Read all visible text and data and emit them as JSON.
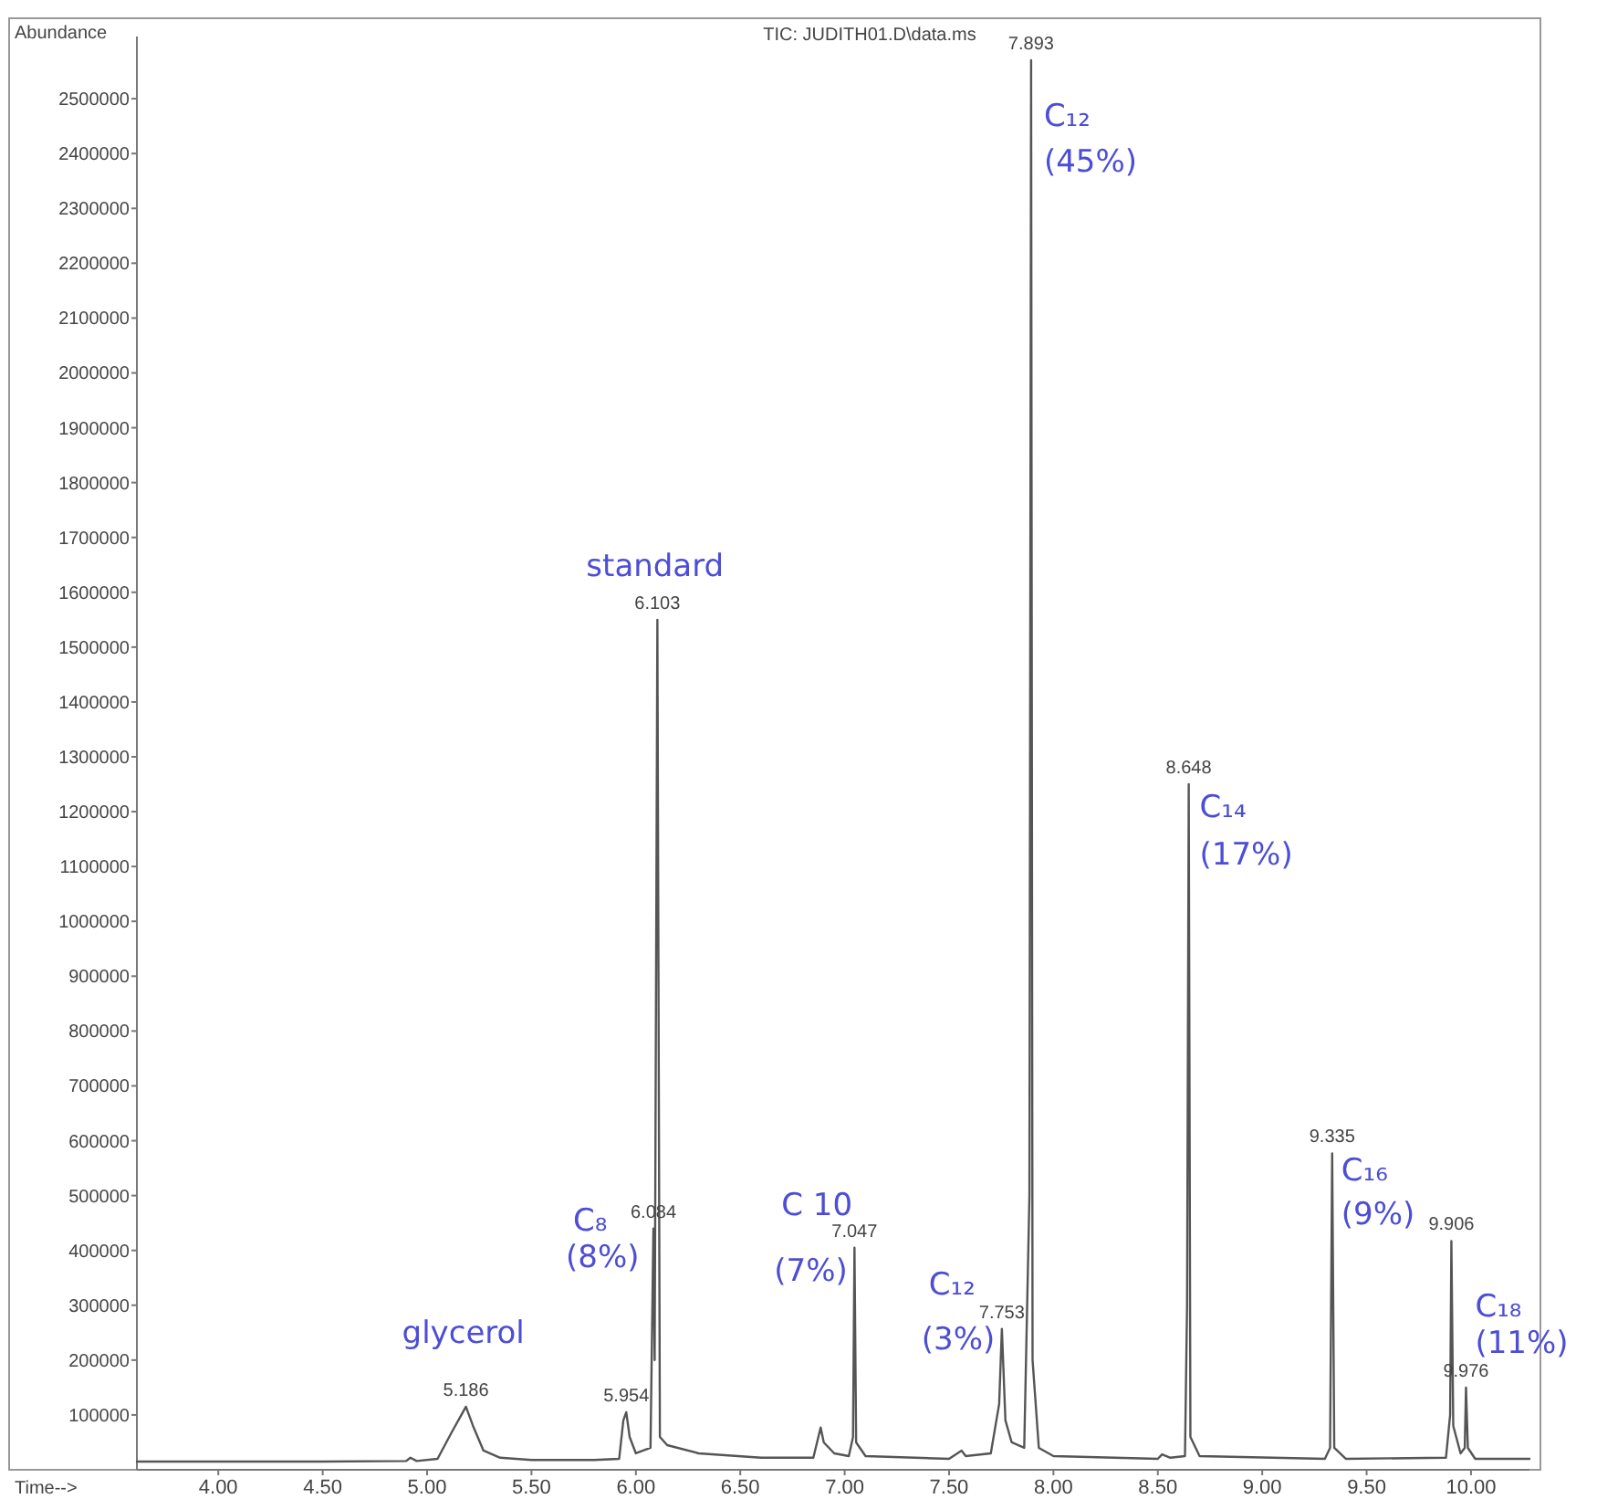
{
  "chart_data": {
    "type": "line",
    "title": "TIC: JUDITH01.D\\data.ms",
    "xlabel": "Time-->",
    "ylabel": "Abundance",
    "x": [
      3.61,
      4.5,
      4.9,
      4.92,
      4.95,
      5.05,
      5.12,
      5.186,
      5.22,
      5.27,
      5.35,
      5.5,
      5.8,
      5.92,
      5.94,
      5.954,
      5.97,
      6.0,
      6.07,
      6.084,
      6.09,
      6.103,
      6.115,
      6.15,
      6.3,
      6.6,
      6.85,
      6.885,
      6.9,
      6.95,
      7.02,
      7.04,
      7.047,
      7.055,
      7.1,
      7.5,
      7.56,
      7.58,
      7.7,
      7.74,
      7.753,
      7.77,
      7.8,
      7.86,
      7.885,
      7.893,
      7.9,
      7.93,
      8.0,
      8.5,
      8.52,
      8.56,
      8.63,
      8.64,
      8.648,
      8.656,
      8.7,
      9.3,
      9.325,
      9.335,
      9.345,
      9.4,
      9.88,
      9.9,
      9.906,
      9.915,
      9.95,
      9.97,
      9.976,
      9.985,
      10.02,
      10.28
    ],
    "series": [
      {
        "color": "#555555",
        "values": [
          15000,
          15000,
          16000,
          22000,
          16000,
          20000,
          70000,
          115000,
          80000,
          35000,
          22000,
          18000,
          18000,
          20000,
          90000,
          105000,
          60000,
          30000,
          40000,
          440000,
          200000,
          1550000,
          60000,
          45000,
          30000,
          22000,
          22000,
          77000,
          50000,
          30000,
          25000,
          60000,
          405000,
          50000,
          25000,
          20000,
          35000,
          25000,
          30000,
          120000,
          257000,
          90000,
          50000,
          40000,
          500000,
          2570000,
          200000,
          40000,
          25000,
          20000,
          28000,
          22000,
          25000,
          300000,
          1250000,
          60000,
          25000,
          20000,
          40000,
          577000,
          40000,
          20000,
          22000,
          100000,
          417000,
          80000,
          30000,
          40000,
          150000,
          40000,
          20000,
          20000
        ]
      }
    ],
    "xlim": [
      3.61,
      10.28
    ],
    "ylim": [
      0,
      2640000
    ],
    "xticks": [
      {
        "value": 4,
        "label": "4.00"
      },
      {
        "value": 4.5,
        "label": "4.50"
      },
      {
        "value": 5,
        "label": "5.00"
      },
      {
        "value": 5.5,
        "label": "5.50"
      },
      {
        "value": 6,
        "label": "6.00"
      },
      {
        "value": 6.5,
        "label": "6.50"
      },
      {
        "value": 7,
        "label": "7.00"
      },
      {
        "value": 7.5,
        "label": "7.50"
      },
      {
        "value": 8,
        "label": "8.00"
      },
      {
        "value": 8.5,
        "label": "8.50"
      },
      {
        "value": 9,
        "label": "9.00"
      },
      {
        "value": 9.5,
        "label": "9.50"
      },
      {
        "value": 10,
        "label": "10.00"
      }
    ],
    "yticks": [
      100000,
      200000,
      300000,
      400000,
      500000,
      600000,
      700000,
      800000,
      900000,
      1000000,
      1100000,
      1200000,
      1300000,
      1400000,
      1500000,
      1600000,
      1700000,
      1800000,
      1900000,
      2000000,
      2100000,
      2200000,
      2300000,
      2400000,
      2500000
    ],
    "grid": false,
    "marker": "none",
    "line_style": "solid",
    "annotations": [
      {
        "text": "5.186",
        "x": 5.186,
        "y": 115000
      },
      {
        "text": "5.954",
        "x": 5.954,
        "y": 105000
      },
      {
        "text": "6.084",
        "x": 6.084,
        "y": 440000
      },
      {
        "text": "6.103",
        "x": 6.103,
        "y": 1550000
      },
      {
        "text": "7.047",
        "x": 7.047,
        "y": 405000
      },
      {
        "text": "7.753",
        "x": 7.753,
        "y": 257000
      },
      {
        "text": "7.893",
        "x": 7.893,
        "y": 2570000
      },
      {
        "text": "8.648",
        "x": 8.648,
        "y": 1250000
      },
      {
        "text": "9.335",
        "x": 9.335,
        "y": 577000
      },
      {
        "text": "9.906",
        "x": 9.906,
        "y": 417000
      },
      {
        "text": "9.976",
        "x": 9.976,
        "y": 150000
      },
      {
        "text": "standard",
        "x": 6.103,
        "y": 1550000
      },
      {
        "text": "glycerol",
        "x": 5.186,
        "y": 115000
      },
      {
        "text": "C₈\n(8%)",
        "x": 6.084,
        "y": 440000
      },
      {
        "text": "C 10\n(7%)",
        "x": 7.047,
        "y": 405000
      },
      {
        "text": "C₁₂\n(3%)",
        "x": 7.753,
        "y": 257000
      },
      {
        "text": "C₁₂\n(45%)",
        "x": 7.893,
        "y": 2570000
      },
      {
        "text": "C₁₄\n(17%)",
        "x": 8.648,
        "y": 1250000
      },
      {
        "text": "C₁₆\n(9%)",
        "x": 9.335,
        "y": 577000
      },
      {
        "text": "C₁₈\n(11%)",
        "x": 9.976,
        "y": 150000
      }
    ]
  }
}
